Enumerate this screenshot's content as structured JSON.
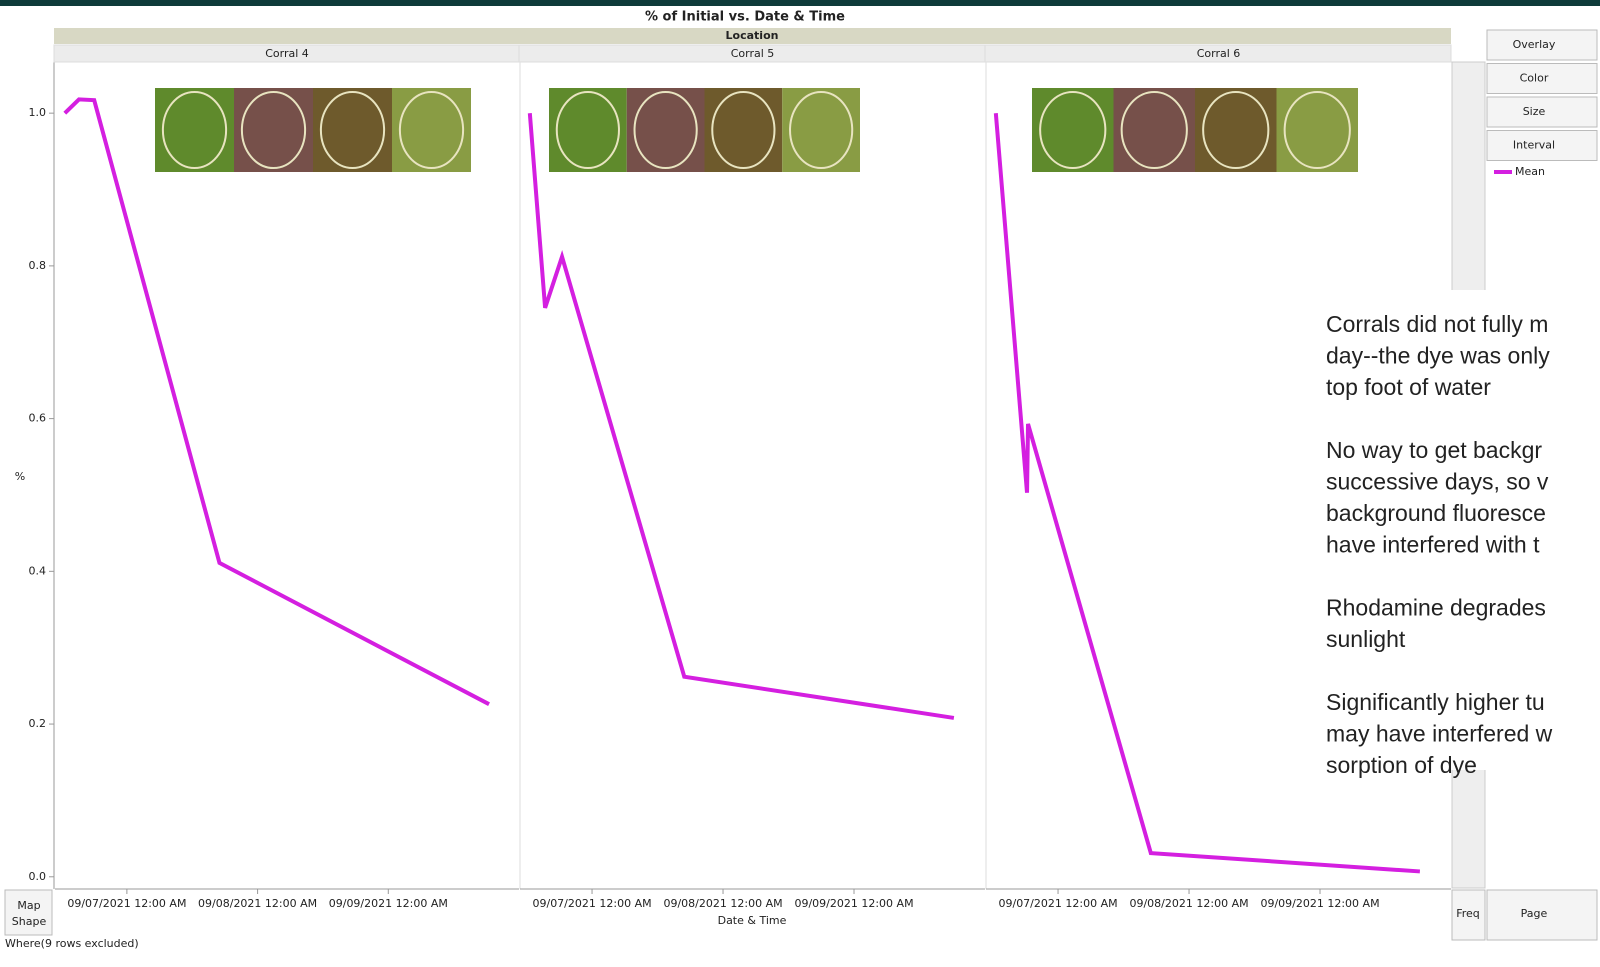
{
  "graph": {
    "title": "% of Initial vs. Date & Time",
    "group_label": "Location",
    "x_label": "Date & Time",
    "y_label": "%",
    "footer": "Where(9 rows excluded)"
  },
  "controls": {
    "buttons": [
      "Overlay",
      "Color",
      "Size",
      "Interval"
    ],
    "freq": "Freq",
    "page": "Page",
    "map_shape": [
      "Map",
      "Shape"
    ]
  },
  "annotation": [
    [
      "Corrals did not fully m",
      "day--the dye was only",
      "top foot of water"
    ],
    [
      "No way to get backgr",
      "successive days, so v",
      "background fluoresce",
      "have interfered with t"
    ],
    [
      "Rhodamine degrades",
      "sunlight"
    ],
    [
      "Significantly higher tu",
      "may have interfered w",
      "sorption of dye"
    ]
  ],
  "chart_data": [
    {
      "type": "line",
      "title": "Corral 4",
      "x": [
        "2021-09-06T12:36",
        "2021-09-06T15:12",
        "2021-09-06T18:00",
        "2021-09-07T17:00",
        "2021-09-09T18:30"
      ],
      "series": [
        {
          "name": "Mean",
          "color": "#d41fe0",
          "values": [
            1.0,
            1.018,
            1.017,
            0.411,
            0.226
          ]
        }
      ],
      "xlim": [
        "2021-09-06T10:48",
        "2021-09-10T00:00"
      ],
      "xticks": [
        {
          "value": "2021-09-07T00:00",
          "label": "09/07/2021 12:00 AM"
        },
        {
          "value": "2021-09-08T00:00",
          "label": "09/08/2021 12:00 AM"
        },
        {
          "value": "2021-09-09T00:00",
          "label": "09/09/2021 12:00 AM"
        }
      ],
      "ylim": [
        -0.016,
        1.067
      ],
      "yticks": [
        {
          "value": 0,
          "label": "0.0"
        },
        0.2,
        0.4,
        0.6,
        0.8,
        {
          "value": 1,
          "label": "1.0"
        }
      ]
    },
    {
      "type": "line",
      "title": "Corral 5",
      "x": [
        "2021-09-06T12:36",
        "2021-09-06T15:24",
        "2021-09-06T18:30",
        "2021-09-07T16:54",
        "2021-09-09T18:18"
      ],
      "series": [
        {
          "name": "Mean",
          "color": "#d41fe0",
          "values": [
            1.0,
            0.745,
            0.812,
            0.262,
            0.208
          ]
        }
      ],
      "xlim": [
        "2021-09-06T10:48",
        "2021-09-10T00:00"
      ],
      "xticks": [
        {
          "value": "2021-09-07T00:00",
          "label": "09/07/2021 12:00 AM"
        },
        {
          "value": "2021-09-08T00:00",
          "label": "09/08/2021 12:00 AM"
        },
        {
          "value": "2021-09-09T00:00",
          "label": "09/09/2021 12:00 AM"
        }
      ]
    },
    {
      "type": "line",
      "title": "Corral 6",
      "x": [
        "2021-09-06T12:36",
        "2021-09-06T18:19",
        "2021-09-06T18:30",
        "2021-09-07T17:00",
        "2021-09-09T18:18"
      ],
      "series": [
        {
          "name": "Mean",
          "color": "#d41fe0",
          "values": [
            1.0,
            0.503,
            0.593,
            0.031,
            0.007
          ]
        }
      ],
      "xlim": [
        "2021-09-06T10:48",
        "2021-09-10T00:00"
      ],
      "xticks": [
        {
          "value": "2021-09-07T00:00",
          "label": "09/07/2021 12:00 AM"
        },
        {
          "value": "2021-09-08T00:00",
          "label": "09/08/2021 12:00 AM"
        },
        {
          "value": "2021-09-09T00:00",
          "label": "09/09/2021 12:00 AM"
        }
      ]
    }
  ]
}
